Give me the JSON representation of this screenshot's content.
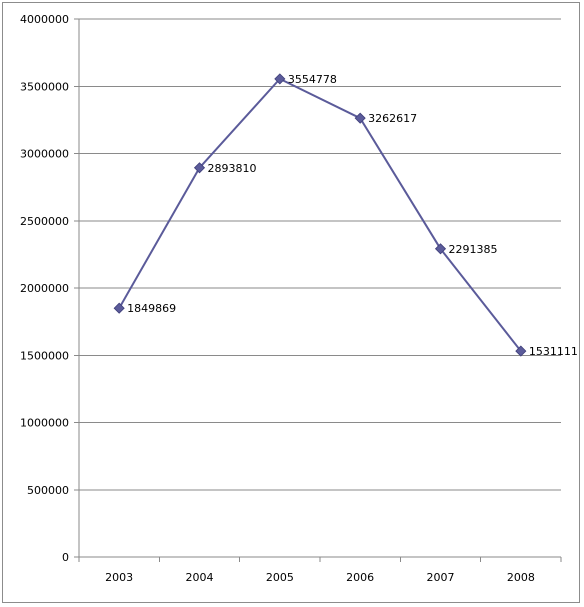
{
  "chart_data": {
    "type": "line",
    "title": "",
    "xlabel": "",
    "ylabel": "",
    "categories": [
      "2003",
      "2004",
      "2005",
      "2006",
      "2007",
      "2008"
    ],
    "series": [
      {
        "values": [
          1849869,
          2893810,
          3554778,
          3262617,
          2291385,
          1531111
        ],
        "color": "#5b5b9a",
        "marker": "diamond"
      }
    ],
    "data_labels": [
      "1849869",
      "2893810",
      "3554778",
      "3262617",
      "2291385",
      "1531111"
    ],
    "ylim": [
      0,
      4000000
    ],
    "yticks": [
      0,
      500000,
      1000000,
      1500000,
      2000000,
      2500000,
      3000000,
      3500000,
      4000000
    ],
    "ytick_labels": [
      "0",
      "500000",
      "1000000",
      "1500000",
      "2000000",
      "2500000",
      "3000000",
      "3500000",
      "4000000"
    ],
    "grid": true,
    "legend": "none"
  }
}
